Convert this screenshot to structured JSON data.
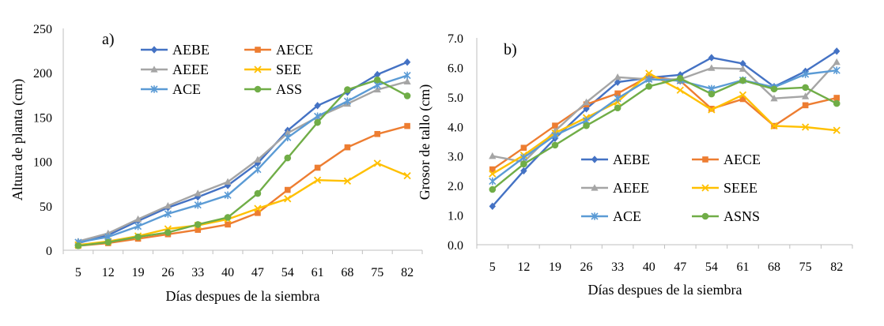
{
  "chart_data": [
    {
      "type": "line",
      "panel_label": "a)",
      "xlabel": "Días despues de la siembra",
      "ylabel": "Altura de planta (cm)",
      "categories": [
        "5",
        "12",
        "19",
        "26",
        "33",
        "40",
        "47",
        "54",
        "61",
        "68",
        "75",
        "82"
      ],
      "ylim": [
        0,
        250
      ],
      "yticks": [
        "0",
        "50",
        "100",
        "150",
        "200",
        "250"
      ],
      "grid": false,
      "legend_position": "top-left, 2 columns",
      "series": [
        {
          "name": "AEBE",
          "color": "#4472C4",
          "marker": "diamond",
          "values": [
            8,
            17,
            33,
            48,
            60,
            73,
            98,
            135,
            163,
            178,
            198,
            212
          ]
        },
        {
          "name": "AECE",
          "color": "#ED7D31",
          "marker": "square",
          "values": [
            5,
            8,
            13,
            18,
            23,
            29,
            42,
            68,
            93,
            116,
            131,
            140
          ]
        },
        {
          "name": "AEEE",
          "color": "#A5A5A5",
          "marker": "triangle",
          "values": [
            10,
            19,
            35,
            50,
            64,
            77,
            102,
            132,
            150,
            165,
            181,
            190
          ]
        },
        {
          "name": "SEE",
          "color": "#FFC000",
          "marker": "x",
          "values": [
            6,
            10,
            16,
            24,
            28,
            35,
            47,
            58,
            79,
            78,
            98,
            84
          ]
        },
        {
          "name": "ACE",
          "color": "#5B9BD5",
          "marker": "star",
          "values": [
            9,
            15,
            27,
            41,
            51,
            62,
            91,
            127,
            151,
            168,
            186,
            197
          ]
        },
        {
          "name": "ASS",
          "color": "#70AD47",
          "marker": "circle",
          "values": [
            5,
            9,
            15,
            20,
            29,
            37,
            64,
            104,
            144,
            181,
            192,
            174
          ]
        }
      ]
    },
    {
      "type": "line",
      "panel_label": "b)",
      "xlabel": "Días despues de la siembra",
      "ylabel": "Grosor de tallo (cm)",
      "categories": [
        "5",
        "12",
        "19",
        "26",
        "33",
        "40",
        "47",
        "54",
        "61",
        "68",
        "75",
        "82"
      ],
      "ylim": [
        0,
        7
      ],
      "yticks": [
        "0.0",
        "1.0",
        "2.0",
        "3.0",
        "4.0",
        "5.0",
        "6.0",
        "7.0"
      ],
      "grid": false,
      "legend_position": "bottom-left, 2 columns",
      "series": [
        {
          "name": "AEBE",
          "color": "#4472C4",
          "marker": "diamond",
          "values": [
            1.3,
            2.5,
            3.6,
            4.6,
            5.5,
            5.65,
            5.75,
            6.33,
            6.13,
            5.35,
            5.87,
            6.55
          ]
        },
        {
          "name": "AECE",
          "color": "#ED7D31",
          "marker": "square",
          "values": [
            2.55,
            3.28,
            4.03,
            4.75,
            5.12,
            5.7,
            5.55,
            4.6,
            4.93,
            4.02,
            4.72,
            4.97
          ]
        },
        {
          "name": "AEEE",
          "color": "#A5A5A5",
          "marker": "triangle",
          "values": [
            3.0,
            2.8,
            3.85,
            4.82,
            5.67,
            5.6,
            5.6,
            5.98,
            5.95,
            4.95,
            5.02,
            6.18
          ]
        },
        {
          "name": "SEEE",
          "color": "#FFC000",
          "marker": "x",
          "values": [
            2.4,
            3.03,
            3.78,
            4.3,
            4.83,
            5.8,
            5.23,
            4.57,
            5.07,
            4.02,
            3.98,
            3.87
          ]
        },
        {
          "name": "ACE",
          "color": "#5B9BD5",
          "marker": "star",
          "values": [
            2.15,
            2.95,
            3.7,
            4.2,
            4.95,
            5.6,
            5.55,
            5.28,
            5.57,
            5.33,
            5.77,
            5.9
          ]
        },
        {
          "name": "ASNS",
          "color": "#70AD47",
          "marker": "circle",
          "values": [
            1.87,
            2.73,
            3.37,
            4.03,
            4.63,
            5.36,
            5.63,
            5.1,
            5.56,
            5.27,
            5.32,
            4.78
          ]
        }
      ]
    }
  ]
}
